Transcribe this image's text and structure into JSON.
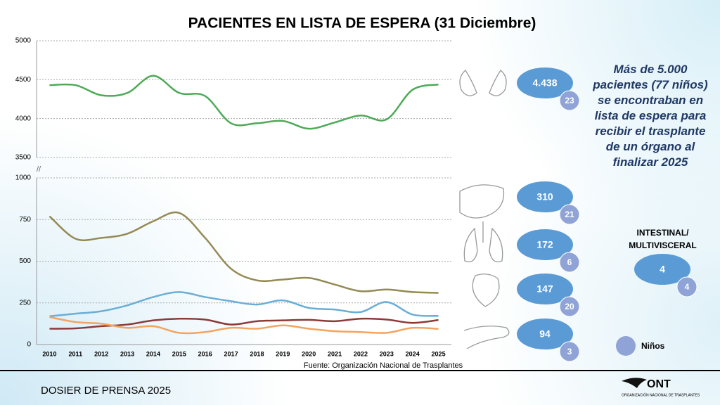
{
  "title": "PACIENTES EN LISTA DE ESPERA (31 Diciembre)",
  "chart_data": [
    {
      "type": "line",
      "ylim": [
        3500,
        5000
      ],
      "yticks": [
        3500,
        4000,
        4500,
        5000
      ],
      "grid": true,
      "series": [
        {
          "color": "#4daa57",
          "values": [
            4430,
            4430,
            4300,
            4330,
            4550,
            4330,
            4290,
            3940,
            3940,
            3970,
            3870,
            3950,
            4040,
            3990,
            4370,
            4438
          ]
        }
      ]
    },
    {
      "type": "line",
      "categories": [
        "2010",
        "2011",
        "2012",
        "2013",
        "2014",
        "2015",
        "2016",
        "2017",
        "2018",
        "2019",
        "2020",
        "2021",
        "2022",
        "2023",
        "2024",
        "2025"
      ],
      "ylim": [
        0,
        1000
      ],
      "yticks": [
        0,
        250,
        500,
        750,
        1000
      ],
      "grid": true,
      "series": [
        {
          "color": "#948a54",
          "values": [
            770,
            635,
            640,
            665,
            740,
            790,
            640,
            455,
            385,
            390,
            400,
            360,
            320,
            330,
            315,
            310
          ]
        },
        {
          "color": "#6aaed6",
          "values": [
            170,
            185,
            200,
            235,
            285,
            315,
            285,
            260,
            240,
            265,
            220,
            210,
            195,
            255,
            180,
            172
          ]
        },
        {
          "color": "#8b3a3a",
          "values": [
            95,
            97,
            110,
            120,
            145,
            155,
            150,
            120,
            140,
            145,
            148,
            140,
            155,
            150,
            130,
            147
          ]
        },
        {
          "color": "#f4a460",
          "values": [
            165,
            135,
            125,
            100,
            110,
            70,
            75,
            100,
            95,
            115,
            95,
            80,
            75,
            70,
            100,
            94
          ]
        }
      ]
    }
  ],
  "source": "Fuente: Organización Nacional de Trasplantes",
  "annotation": "Más de 5.000 pacientes (77 niños) se encontraban en lista de espera para recibir el trasplante de un órgano al finalizar 2025",
  "summary": [
    {
      "total": {
        "value": 4438,
        "label": "4.438"
      },
      "children": 23
    },
    {
      "total": 310,
      "children": 21
    },
    {
      "total": 172,
      "children": 6
    },
    {
      "total": 147,
      "children": 20
    },
    {
      "total": 94,
      "children": 3
    },
    {
      "label": "INTESTINAL/ MULTIVISCERAL",
      "total": 4,
      "children": 4
    }
  ],
  "children_legend": "Niños",
  "footer": "DOSIER DE PRENSA 2025",
  "logo": {
    "name": "ONT",
    "subtitle": "ORGANIZACIÓN NACIONAL DE TRASPLANTES"
  }
}
